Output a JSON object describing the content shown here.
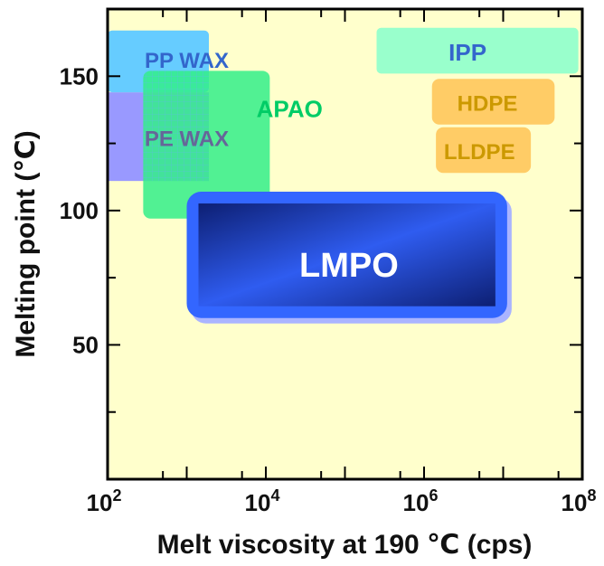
{
  "chart_data": {
    "type": "region-map",
    "xlabel": "Melt viscosity at 190 ℃ (cps)",
    "ylabel": "Melting point (℃)",
    "x_scale": "log10",
    "x_base_label": "10",
    "xlim_exp": [
      2,
      8
    ],
    "x_major_exponents": [
      2,
      4,
      6,
      8
    ],
    "ylim": [
      0,
      175
    ],
    "y_ticks": [
      50,
      100,
      150
    ],
    "y_minor_ticks": [
      25,
      75,
      125
    ],
    "background": "#ffffcc",
    "regions": [
      {
        "label": "PE WAX",
        "x_exp": [
          2,
          3.28
        ],
        "y": [
          111,
          144
        ],
        "color": "#9999ff",
        "label_color": "#666699"
      },
      {
        "label": "PP WAX",
        "x_exp": [
          2,
          3.28
        ],
        "y": [
          144,
          167
        ],
        "color": "#66ccff",
        "label_color": "#3366cc"
      },
      {
        "label": "APAO",
        "x_exp": [
          2.45,
          4.05
        ],
        "y": [
          97,
          152
        ],
        "color": "#33ee88",
        "label_color": "#00cc66"
      },
      {
        "label": "IPP",
        "x_exp": [
          5.4,
          7.95
        ],
        "y": [
          151,
          168
        ],
        "color": "#99ffcc",
        "label_color": "#3366cc"
      },
      {
        "label": "HDPE",
        "x_exp": [
          6.1,
          7.65
        ],
        "y": [
          132,
          149
        ],
        "color": "#ffcc66",
        "label_color": "#cc9900"
      },
      {
        "label": "LLDPE",
        "x_exp": [
          6.15,
          7.35
        ],
        "y": [
          114,
          131
        ],
        "color": "#ffcc66",
        "label_color": "#cc9900"
      },
      {
        "label": "LMPO",
        "x_exp": [
          3.0,
          7.05
        ],
        "y": [
          60,
          107
        ],
        "color": "#3366ff",
        "label_color": "#ffffff"
      }
    ]
  }
}
